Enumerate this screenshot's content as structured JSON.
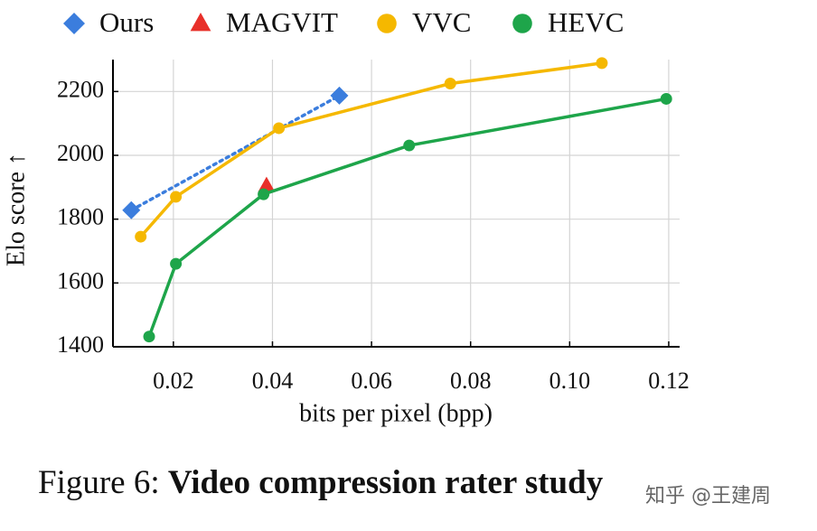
{
  "chart_data": {
    "type": "line",
    "xlabel": "bits per pixel (bpp)",
    "ylabel": "Elo score ↑",
    "xlim": [
      0.0078,
      0.1222
    ],
    "ylim": [
      1400,
      2300
    ],
    "xticks": [
      0.02,
      0.04,
      0.06,
      0.08,
      {
        "value": 0.1,
        "label": "0.10"
      },
      0.12
    ],
    "yticks": [
      1400,
      1600,
      1800,
      2000,
      2200
    ],
    "grid": true,
    "series": [
      {
        "name": "Ours",
        "color": "#3b7ddd",
        "marker": "diamond",
        "linestyle": "dotted",
        "x": [
          0.0115,
          0.0535
        ],
        "values": [
          1828,
          2187
        ]
      },
      {
        "name": "MAGVIT",
        "color": "#e8302a",
        "marker": "triangle",
        "linestyle": "none",
        "x": [
          0.0388
        ],
        "values": [
          1905
        ]
      },
      {
        "name": "VVC",
        "color": "#f5b800",
        "marker": "circle",
        "linestyle": "solid",
        "x": [
          0.0134,
          0.0205,
          0.0413,
          0.0759,
          0.1065
        ],
        "values": [
          1745,
          1870,
          2085,
          2225,
          2289
        ]
      },
      {
        "name": "HEVC",
        "color": "#1ea54a",
        "marker": "circle",
        "linestyle": "solid",
        "x": [
          0.0151,
          0.0205,
          0.0382,
          0.0676,
          0.1195
        ],
        "values": [
          1432,
          1660,
          1878,
          2031,
          2177
        ]
      }
    ]
  },
  "caption": {
    "prefix": "Figure 6:",
    "bold": "Video compression rater study"
  },
  "watermark": "知乎 @王建周"
}
